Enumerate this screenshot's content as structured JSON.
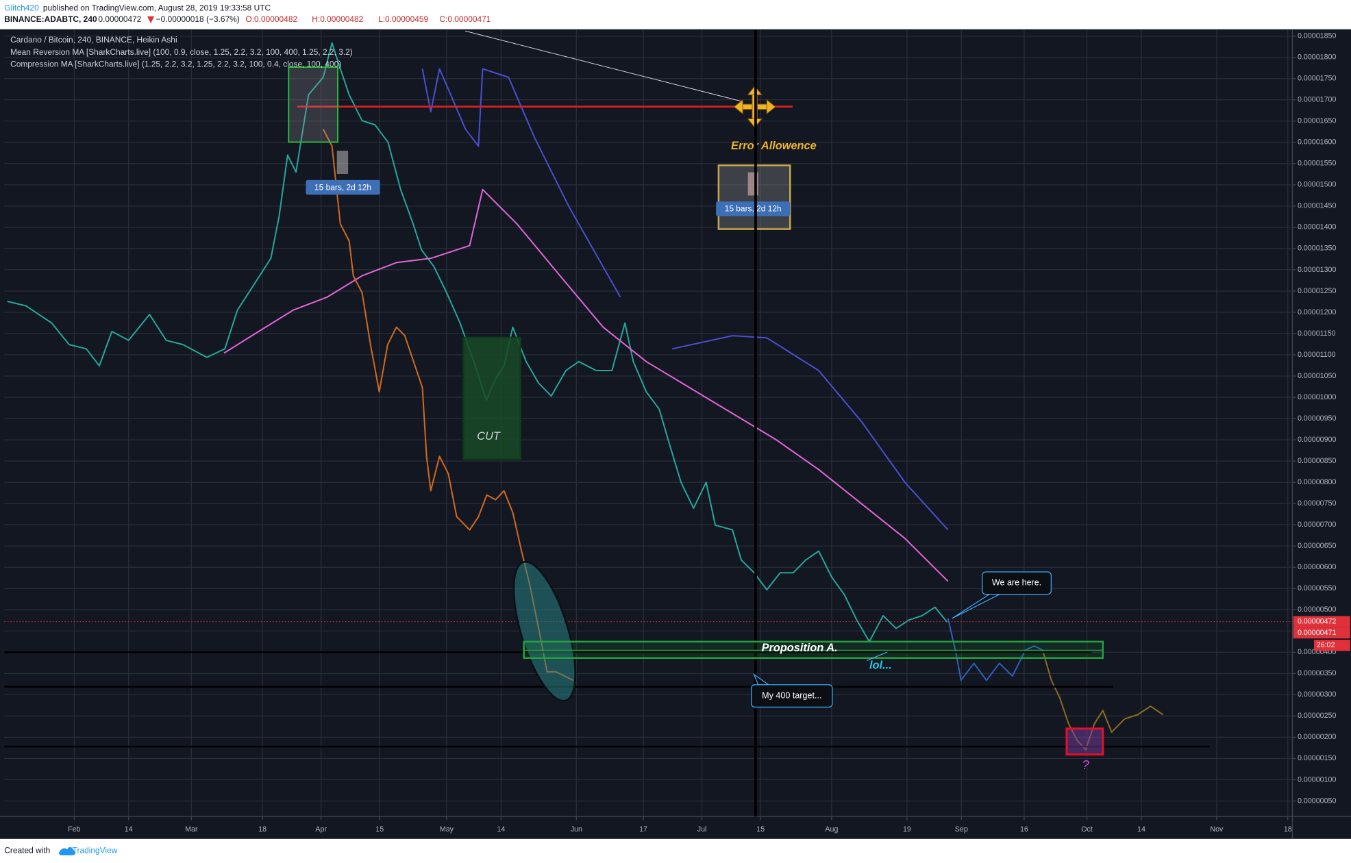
{
  "header": {
    "author": "Glitch420",
    "published": "published on TradingView.com, August 28, 2019 19:33:58 UTC"
  },
  "symbol": {
    "name": "BINANCE:ADABTC, 240",
    "last": "0.00000472",
    "change": "−0.00000018 (−3.67%)",
    "open": "O:0.00000482",
    "high": "H:0.00000482",
    "low": "L:0.00000459",
    "close": "C:0.00000471"
  },
  "footer": {
    "created": "Created with",
    "brand": "TradingView"
  },
  "chart_data": {
    "type": "line",
    "xlim": [
      15.3,
      323.1
    ],
    "ylim": [
      1.35e-07,
      1.864e-05
    ],
    "grid": true,
    "xticks": [
      {
        "value": 32,
        "label": "Feb"
      },
      {
        "value": 45,
        "label": "14"
      },
      {
        "value": 60,
        "label": "Mar"
      },
      {
        "value": 77,
        "label": "18"
      },
      {
        "value": 91,
        "label": "Apr"
      },
      {
        "value": 105,
        "label": "15"
      },
      {
        "value": 121,
        "label": "May"
      },
      {
        "value": 134,
        "label": "14"
      },
      {
        "value": 152,
        "label": "Jun"
      },
      {
        "value": 168,
        "label": "17"
      },
      {
        "value": 182,
        "label": "Jul"
      },
      {
        "value": 196,
        "label": "15"
      },
      {
        "value": 213,
        "label": "Aug"
      },
      {
        "value": 231,
        "label": "19"
      },
      {
        "value": 244,
        "label": "Sep"
      },
      {
        "value": 259,
        "label": "16"
      },
      {
        "value": 274,
        "label": "Oct"
      },
      {
        "value": 287,
        "label": "14"
      },
      {
        "value": 305,
        "label": "Nov"
      },
      {
        "value": 322,
        "label": "18"
      }
    ],
    "yticks": [
      {
        "value": 5e-07,
        "label": "0.00000050"
      },
      {
        "value": 1e-06,
        "label": "0.00000100"
      },
      {
        "value": 1.5e-06,
        "label": "0.00000150"
      },
      {
        "value": 2e-06,
        "label": "0.00000200"
      },
      {
        "value": 2.5e-06,
        "label": "0.00000250"
      },
      {
        "value": 3e-06,
        "label": "0.00000300"
      },
      {
        "value": 3.5e-06,
        "label": "0.00000350"
      },
      {
        "value": 4e-06,
        "label": "0.00000400"
      },
      {
        "value": 4.5e-06,
        "label": "0.00000450"
      },
      {
        "value": 5e-06,
        "label": "0.00000500"
      },
      {
        "value": 5.5e-06,
        "label": "0.00000550"
      },
      {
        "value": 6e-06,
        "label": "0.00000600"
      },
      {
        "value": 6.5e-06,
        "label": "0.00000650"
      },
      {
        "value": 7e-06,
        "label": "0.00000700"
      },
      {
        "value": 7.5e-06,
        "label": "0.00000750"
      },
      {
        "value": 8e-06,
        "label": "0.00000800"
      },
      {
        "value": 8.5e-06,
        "label": "0.00000850"
      },
      {
        "value": 9e-06,
        "label": "0.00000900"
      },
      {
        "value": 9.5e-06,
        "label": "0.00000950"
      },
      {
        "value": 1e-05,
        "label": "0.00001000"
      },
      {
        "value": 1.05e-05,
        "label": "0.00001050"
      },
      {
        "value": 1.1e-05,
        "label": "0.00001100"
      },
      {
        "value": 1.15e-05,
        "label": "0.00001150"
      },
      {
        "value": 1.2e-05,
        "label": "0.00001200"
      },
      {
        "value": 1.25e-05,
        "label": "0.00001250"
      },
      {
        "value": 1.3e-05,
        "label": "0.00001300"
      },
      {
        "value": 1.35e-05,
        "label": "0.00001350"
      },
      {
        "value": 1.4e-05,
        "label": "0.00001400"
      },
      {
        "value": 1.45e-05,
        "label": "0.00001450"
      },
      {
        "value": 1.5e-05,
        "label": "0.00001500"
      },
      {
        "value": 1.55e-05,
        "label": "0.00001550"
      },
      {
        "value": 1.6e-05,
        "label": "0.00001600"
      },
      {
        "value": 1.65e-05,
        "label": "0.00001650"
      },
      {
        "value": 1.7e-05,
        "label": "0.00001700"
      },
      {
        "value": 1.75e-05,
        "label": "0.00001750"
      },
      {
        "value": 1.8e-05,
        "label": "0.00001800"
      },
      {
        "value": 1.85e-05,
        "label": "0.00001850"
      }
    ],
    "series": [
      {
        "name": "Cardano / Bitcoin, 240, BINANCE, Heikin Ashi",
        "color": "#26a69a",
        "x": [
          16,
          20.5,
          26.6,
          30.8,
          34.9,
          38,
          41,
          45,
          50,
          54,
          58,
          63.7,
          68,
          71,
          75,
          79,
          81,
          83,
          85,
          88,
          91.5,
          93.6,
          95.6,
          97.7,
          100.8,
          103.9,
          107,
          110,
          113,
          115,
          118,
          121,
          124.2,
          127.5,
          130.5,
          132.7,
          134.7,
          136.8,
          140,
          143,
          146,
          149.5,
          152.6,
          156.7,
          160.5,
          163.6,
          165.6,
          168.7,
          171.8,
          173.9,
          177,
          180,
          183,
          185.2,
          189.3,
          191.4,
          194.5,
          197.5,
          200.7,
          203.8,
          206.8,
          209.9,
          213,
          216,
          219,
          222,
          225.3,
          228.4,
          231.5,
          234.6,
          237.7,
          240.6
        ],
        "values": [
          1.226e-05,
          1.215e-05,
          1.175e-05,
          1.124e-05,
          1.114e-05,
          1.074e-05,
          1.155e-05,
          1.134e-05,
          1.195e-05,
          1.134e-05,
          1.124e-05,
          1.094e-05,
          1.114e-05,
          1.205e-05,
          1.266e-05,
          1.327e-05,
          1.428e-05,
          1.57e-05,
          1.53e-05,
          1.712e-05,
          1.753e-05,
          1.834e-05,
          1.773e-05,
          1.712e-05,
          1.651e-05,
          1.641e-05,
          1.6e-05,
          1.489e-05,
          1.408e-05,
          1.347e-05,
          1.307e-05,
          1.246e-05,
          1.175e-05,
          1.084e-05,
          9.93e-06,
          1.043e-05,
          1.074e-05,
          1.165e-05,
          1.084e-05,
          1.033e-05,
          1.003e-05,
          1.063e-05,
          1.084e-05,
          1.063e-05,
          1.063e-05,
          1.175e-05,
          1.084e-05,
          1.013e-05,
          9.72e-06,
          9.01e-06,
          8e-06,
          7.39e-06,
          8e-06,
          6.99e-06,
          6.88e-06,
          6.17e-06,
          5.87e-06,
          5.47e-06,
          5.87e-06,
          5.87e-06,
          6.17e-06,
          6.38e-06,
          5.77e-06,
          5.36e-06,
          4.76e-06,
          4.25e-06,
          4.86e-06,
          4.56e-06,
          4.76e-06,
          4.86e-06,
          5.06e-06,
          4.71e-06
        ]
      },
      {
        "name": "Mean Reversion MA [SharkCharts.live] (100, 0.9, close, 1.25, 2.2, 3.2, 100, 400, 1.25, 2.2, 3.2)",
        "color": "#e066d6",
        "x": [
          67.8,
          76.1,
          84.3,
          92.5,
          100.8,
          109,
          117.2,
          126.5,
          129.6,
          137.8,
          148.1,
          158.4,
          168.7,
          179,
          189.3,
          199.6,
          209.9,
          220.2,
          230.5,
          240.8
        ],
        "values": [
          1.104e-05,
          1.155e-05,
          1.205e-05,
          1.236e-05,
          1.286e-05,
          1.317e-05,
          1.327e-05,
          1.357e-05,
          1.489e-05,
          1.408e-05,
          1.286e-05,
          1.165e-05,
          1.084e-05,
          1.023e-05,
          9.62e-06,
          9.01e-06,
          8.3e-06,
          7.49e-06,
          6.68e-06,
          5.67e-06
        ]
      },
      {
        "name": "Compression MA [SharkCharts.live] (1.25, 2.2, 3.2, 1.25, 2.2, 3.2, 100, 0.4, close, 100, 400)",
        "color": "#4a4fd0",
        "x": [
          115.2,
          117.2,
          119.3,
          125.5,
          128.6,
          129.6,
          135.8,
          142,
          150.2,
          158.4,
          162.5,
          168,
          174.9,
          189.3,
          197.5,
          209.9,
          220.2,
          230.5,
          240.8
        ],
        "values": [
          1.773e-05,
          1.672e-05,
          1.773e-05,
          1.631e-05,
          1.591e-05,
          1.773e-05,
          1.753e-05,
          1.611e-05,
          1.449e-05,
          1.307e-05,
          1.236e-05,
          null,
          1.114e-05,
          1.145e-05,
          1.14e-05,
          1.063e-05,
          9.42e-06,
          8e-06,
          6.88e-06
        ]
      },
      {
        "color": "#d2691e",
        "x": [
          91.5,
          93.6,
          95.6,
          97.7,
          98.7,
          100.8,
          102.8,
          104.9,
          106.9,
          109,
          111,
          113.1,
          115.2,
          116.2,
          117.2,
          119.3,
          121.4,
          123.4,
          126.5,
          128.6,
          130.6,
          132.7,
          134.7,
          136.8,
          138.9,
          140.9,
          143,
          145,
          147.1,
          149.2,
          151.2
        ],
        "values": [
          1.631e-05,
          1.591e-05,
          1.408e-05,
          1.368e-05,
          1.286e-05,
          1.246e-05,
          1.124e-05,
          1.013e-05,
          1.124e-05,
          1.165e-05,
          1.145e-05,
          1.084e-05,
          1.023e-05,
          8.61e-06,
          7.8e-06,
          8.61e-06,
          8.2e-06,
          7.19e-06,
          6.88e-06,
          7.19e-06,
          7.7e-06,
          7.59e-06,
          7.8e-06,
          7.29e-06,
          6.38e-06,
          5.57e-06,
          4.55e-06,
          3.54e-06,
          3.54e-06,
          3.44e-06,
          3.34e-06
        ]
      },
      {
        "color": "#2e5fb8",
        "x": [
          240.8,
          242.8,
          243.9,
          247,
          250,
          253.1,
          256.2,
          259.3,
          261.4,
          263.4
        ],
        "values": [
          4.8e-06,
          3.94e-06,
          3.34e-06,
          3.74e-06,
          3.34e-06,
          3.74e-06,
          3.44e-06,
          4.05e-06,
          4.15e-06,
          4.05e-06
        ]
      },
      {
        "color": "#8a6d1e",
        "x": [
          263.4,
          265.5,
          267.5,
          269.6,
          271.7,
          273.7,
          275.8,
          277.8,
          279.9,
          283,
          286.1,
          289.2,
          292.2
        ],
        "values": [
          4.05e-06,
          3.34e-06,
          2.93e-06,
          2.32e-06,
          1.92e-06,
          1.71e-06,
          2.32e-06,
          2.63e-06,
          2.12e-06,
          2.43e-06,
          2.53e-06,
          2.73e-06,
          2.53e-06
        ]
      }
    ],
    "levels": [
      {
        "value": 4e-06,
        "color": "#000000",
        "x": [
          15.3,
          275.2
        ]
      },
      {
        "value": 3.19e-06,
        "color": "#000000",
        "x": [
          15.3,
          280.3
        ]
      },
      {
        "value": 1.78e-06,
        "color": "#000000",
        "x": [
          15.3,
          303.3
        ]
      },
      {
        "value": 1.684e-05,
        "color": "#e02020",
        "x": [
          85.3,
          203.7
        ]
      }
    ],
    "price_labels": [
      {
        "value": 4.72e-06,
        "label": "0.00000472"
      },
      {
        "value": 4.71e-06,
        "label": "0.00000471"
      }
    ],
    "countdown": "26:02",
    "annotations": {
      "bars_a": "15 bars, 2d 12h",
      "bars_b": "15 bars, 2d 12h",
      "error": "Error Allowence",
      "cut": "CUT",
      "proposition": "Proposition A.",
      "lol": "lol...",
      "target": "My 400 target...",
      "here": "We are here.",
      "question": "?"
    }
  }
}
